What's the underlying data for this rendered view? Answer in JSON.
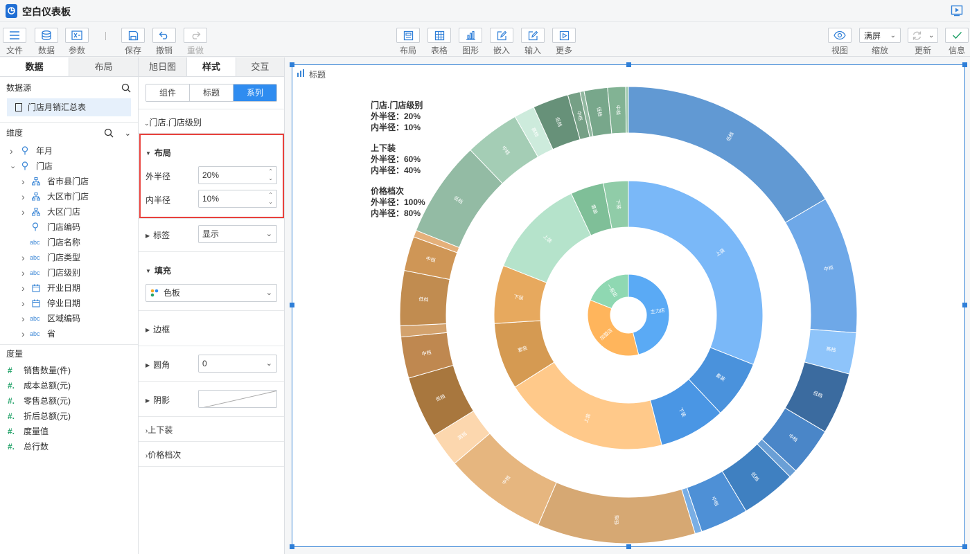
{
  "app": {
    "title": "空白仪表板"
  },
  "toolbar": {
    "file": "文件",
    "data": "数据",
    "params": "参数",
    "save": "保存",
    "undo": "撤销",
    "redo": "重做",
    "layout": "布局",
    "table": "表格",
    "chart": "图形",
    "embed": "嵌入",
    "input": "输入",
    "more": "更多",
    "view": "视图",
    "zoom": "缩放",
    "zoom_value": "满屏",
    "refresh": "更新",
    "info": "信息"
  },
  "left": {
    "tabs": [
      "数据",
      "布局"
    ],
    "datasource_label": "数据源",
    "datasource_item": "门店月销汇总表",
    "dimension_label": "维度",
    "dimensions": [
      {
        "label": "年月",
        "icon": "geo-icon"
      },
      {
        "label": "门店",
        "icon": "geo-icon"
      },
      {
        "label": "省市县门店",
        "icon": "hierarchy-icon"
      },
      {
        "label": "大区市门店",
        "icon": "hierarchy-icon"
      },
      {
        "label": "大区门店",
        "icon": "hierarchy-icon"
      },
      {
        "label": "门店编码",
        "icon": "geo-icon"
      },
      {
        "label": "门店名称",
        "icon": "abc-icon"
      },
      {
        "label": "门店类型",
        "icon": "abc-icon"
      },
      {
        "label": "门店级别",
        "icon": "abc-icon"
      },
      {
        "label": "开业日期",
        "icon": "calendar-icon"
      },
      {
        "label": "停业日期",
        "icon": "calendar-icon"
      },
      {
        "label": "区域编码",
        "icon": "abc-icon"
      },
      {
        "label": "省",
        "icon": "abc-icon"
      }
    ],
    "abc": "abc",
    "measure_label": "度量",
    "measures": [
      "销售数量(件)",
      "成本总额(元)",
      "零售总额(元)",
      "折后总额(元)",
      "度量值",
      "总行数"
    ]
  },
  "middle": {
    "tabs": [
      "旭日图",
      "样式",
      "交互"
    ],
    "segments": [
      "组件",
      "标题",
      "系列"
    ],
    "series_store_level": "门店.门店级别",
    "layout_label": "布局",
    "outer_radius_label": "外半径",
    "outer_radius_value": "20%",
    "inner_radius_label": "内半径",
    "inner_radius_value": "10%",
    "label_label": "标签",
    "label_value": "显示",
    "fill_label": "填充",
    "fill_value": "色板",
    "border_label": "边框",
    "corner_label": "圆角",
    "corner_value": "0",
    "shadow_label": "阴影",
    "series_updown": "上下装",
    "series_price": "价格档次"
  },
  "canvas": {
    "component_title": "标题",
    "legend": [
      {
        "title": "门店.门店级别",
        "outer": "外半径：20%",
        "inner": "内半径：10%"
      },
      {
        "title": "上下装",
        "outer": "外半径：60%",
        "inner": "内半径：40%"
      },
      {
        "title": "价格档次",
        "outer": "外半径：100%",
        "inner": "内半径：80%"
      }
    ]
  },
  "chart_data": {
    "type": "sunburst",
    "rings": [
      {
        "name": "门店.门店级别",
        "slices": [
          {
            "label": "主力店",
            "value": 46,
            "color": "#5aaaf5"
          },
          {
            "label": "加盟店",
            "value": 35,
            "color": "#ffb55c"
          },
          {
            "label": "一般店",
            "value": 19,
            "color": "#8fd8b2"
          }
        ]
      },
      {
        "name": "上下装",
        "slices": [
          {
            "label": "上装",
            "value": 31,
            "color": "#7ab8f8"
          },
          {
            "label": "套装",
            "value": 7,
            "color": "#4a92dc"
          },
          {
            "label": "下装",
            "value": 8,
            "color": "#4a96e4"
          },
          {
            "label": "上装",
            "value": 20,
            "color": "#ffc98a"
          },
          {
            "label": "套装",
            "value": 8,
            "color": "#d59a52"
          },
          {
            "label": "下装",
            "value": 7,
            "color": "#e7a95e"
          },
          {
            "label": "上装",
            "value": 12,
            "color": "#b5e3cb"
          },
          {
            "label": "套装",
            "value": 4,
            "color": "#7fbf98"
          },
          {
            "label": "下装",
            "value": 3,
            "color": "#90cca8"
          }
        ]
      },
      {
        "name": "价格档次",
        "slices": [
          {
            "label": "低档",
            "value": 17,
            "color": "#6199d3"
          },
          {
            "label": "中档",
            "value": 10,
            "color": "#6ea8e8"
          },
          {
            "label": "高档",
            "value": 3,
            "color": "#8ec4fa"
          },
          {
            "label": "低档",
            "value": 4.5,
            "color": "#3b6b9f"
          },
          {
            "label": "中档",
            "value": 3.5,
            "color": "#4a86c8"
          },
          {
            "label": "高档",
            "value": 0.6,
            "color": "#6a9fd6"
          },
          {
            "label": "低档",
            "value": 4,
            "color": "#3f80c1"
          },
          {
            "label": "中档",
            "value": 3.5,
            "color": "#4e90d6"
          },
          {
            "label": "高档",
            "value": 0.5,
            "color": "#79aee4"
          },
          {
            "label": "低档",
            "value": 11.5,
            "color": "#d6a873"
          },
          {
            "label": "中档",
            "value": 7.5,
            "color": "#e6b67f"
          },
          {
            "label": "高档",
            "value": 2.5,
            "color": "#fcd7ae"
          },
          {
            "label": "低档",
            "value": 4.5,
            "color": "#a8773e"
          },
          {
            "label": "中档",
            "value": 3,
            "color": "#bf8850"
          },
          {
            "label": "高档",
            "value": 0.8,
            "color": "#d3a26d"
          },
          {
            "label": "低档",
            "value": 4,
            "color": "#c18c50"
          },
          {
            "label": "中档",
            "value": 2.5,
            "color": "#cf9656"
          },
          {
            "label": "高档",
            "value": 0.5,
            "color": "#e4b07a"
          },
          {
            "label": "低档",
            "value": 7,
            "color": "#93bba4"
          },
          {
            "label": "中档",
            "value": 4,
            "color": "#a4cdb5"
          },
          {
            "label": "高档",
            "value": 1.5,
            "color": "#cdebdc"
          },
          {
            "label": "低档",
            "value": 2.6,
            "color": "#679179"
          },
          {
            "label": "中档",
            "value": 0.9,
            "color": "#76a086"
          },
          {
            "label": "高档",
            "value": 0.3,
            "color": "#92b8a0"
          },
          {
            "label": "低档",
            "value": 1.7,
            "color": "#78a78b"
          },
          {
            "label": "中档",
            "value": 1.3,
            "color": "#82b394"
          },
          {
            "label": "高档",
            "value": 0.2,
            "color": "#9ec9ad"
          }
        ]
      }
    ]
  }
}
